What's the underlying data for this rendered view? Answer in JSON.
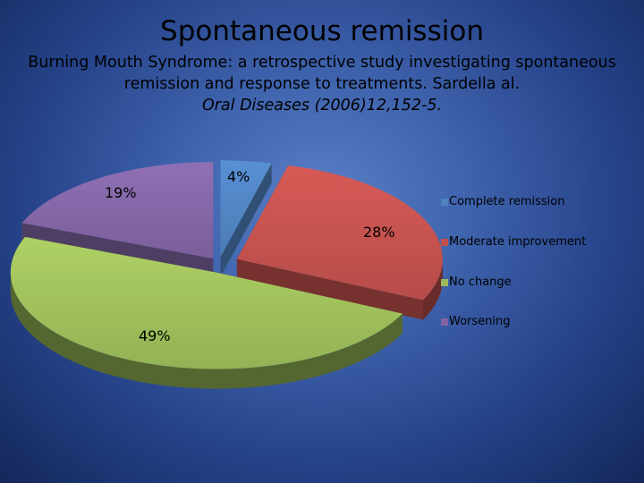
{
  "slide": {
    "title": "Spontaneous remission",
    "citation_line1": "Burning Mouth Syndrome: a retrospective study investigating spontaneous",
    "citation_line2": "remission and response to treatments. Sardella al.",
    "citation_line3": "Oral Diseases (2006)12,152-5."
  },
  "chart_data": {
    "type": "pie",
    "title": "",
    "categories": [
      "Complete remission",
      "Moderate improvement",
      "No change",
      "Worsening"
    ],
    "values": [
      4,
      28,
      49,
      19
    ],
    "value_labels": [
      "4%",
      "28%",
      "49%",
      "19%"
    ],
    "colors": [
      "#4f81bd",
      "#c0504d",
      "#9bbb59",
      "#8064a2"
    ],
    "style": "3d exploded",
    "legend_position": "right"
  }
}
